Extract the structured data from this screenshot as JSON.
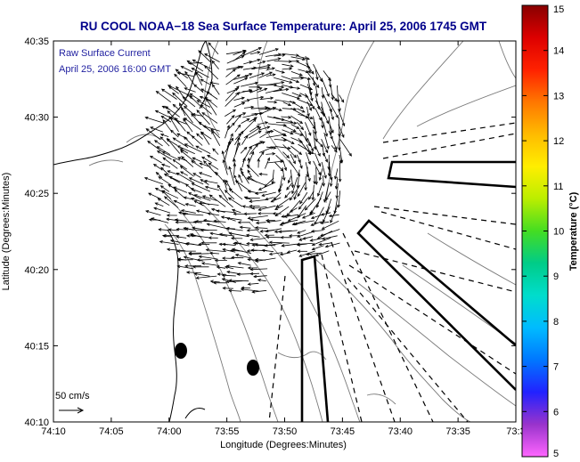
{
  "title": "RU COOL  NOAA−18  Sea Surface Temperature:  April 25, 2006 1745 GMT",
  "annotation": {
    "line1": "Raw Surface Current",
    "line2": "April 25, 2006 16:00 GMT"
  },
  "scale": {
    "label": "50 cm/s"
  },
  "map": {
    "xlabel": "Longitude (Degrees:Minutes)",
    "ylabel": "Latitude (Degrees:Minutes)",
    "x_ticks": [
      "74:10",
      "74:05",
      "74:00",
      "73:55",
      "73:50",
      "73:45",
      "73:40",
      "73:35",
      "73:3"
    ],
    "y_ticks": [
      "40:35",
      "40:30",
      "40:25",
      "40:20",
      "40:15",
      "40:10"
    ]
  },
  "colorbar": {
    "label": "Temperature (°C)",
    "ticks": [
      "15",
      "14",
      "13",
      "12",
      "11",
      "10",
      "9",
      "8",
      "7",
      "6",
      "5"
    ],
    "colors": [
      "#ff66ff",
      "#9933cc",
      "#2222ff",
      "#0077ff",
      "#00bbff",
      "#00ddcc",
      "#00cc88",
      "#44dd22",
      "#bbee00",
      "#ffee00",
      "#ffbb00",
      "#ff7700",
      "#ff2200",
      "#dd0000",
      "#880000"
    ]
  },
  "colors": {
    "title": "#00008b",
    "annotation": "#1f1fa0",
    "land": "#000000",
    "isobath": "#7a7a7a"
  }
}
